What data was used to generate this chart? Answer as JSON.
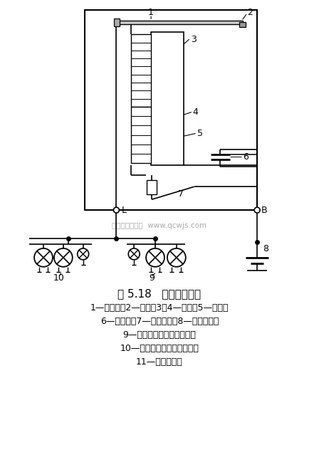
{
  "title": "图 5.18   电容式闪光器",
  "caption_lines": [
    "1—弹簧片；2—触点；3、4—线圈；5—铁心；",
    "6—电容器；7—灭弧电阵；8—电源开关；",
    "9—右转向信号灯和指示灯；",
    "10—左转向信号灯和指示灯；",
    "11—转向灯开关"
  ],
  "watermark": "汽车维修技术网  www.qcwjs.com",
  "bg_color": "#ffffff"
}
